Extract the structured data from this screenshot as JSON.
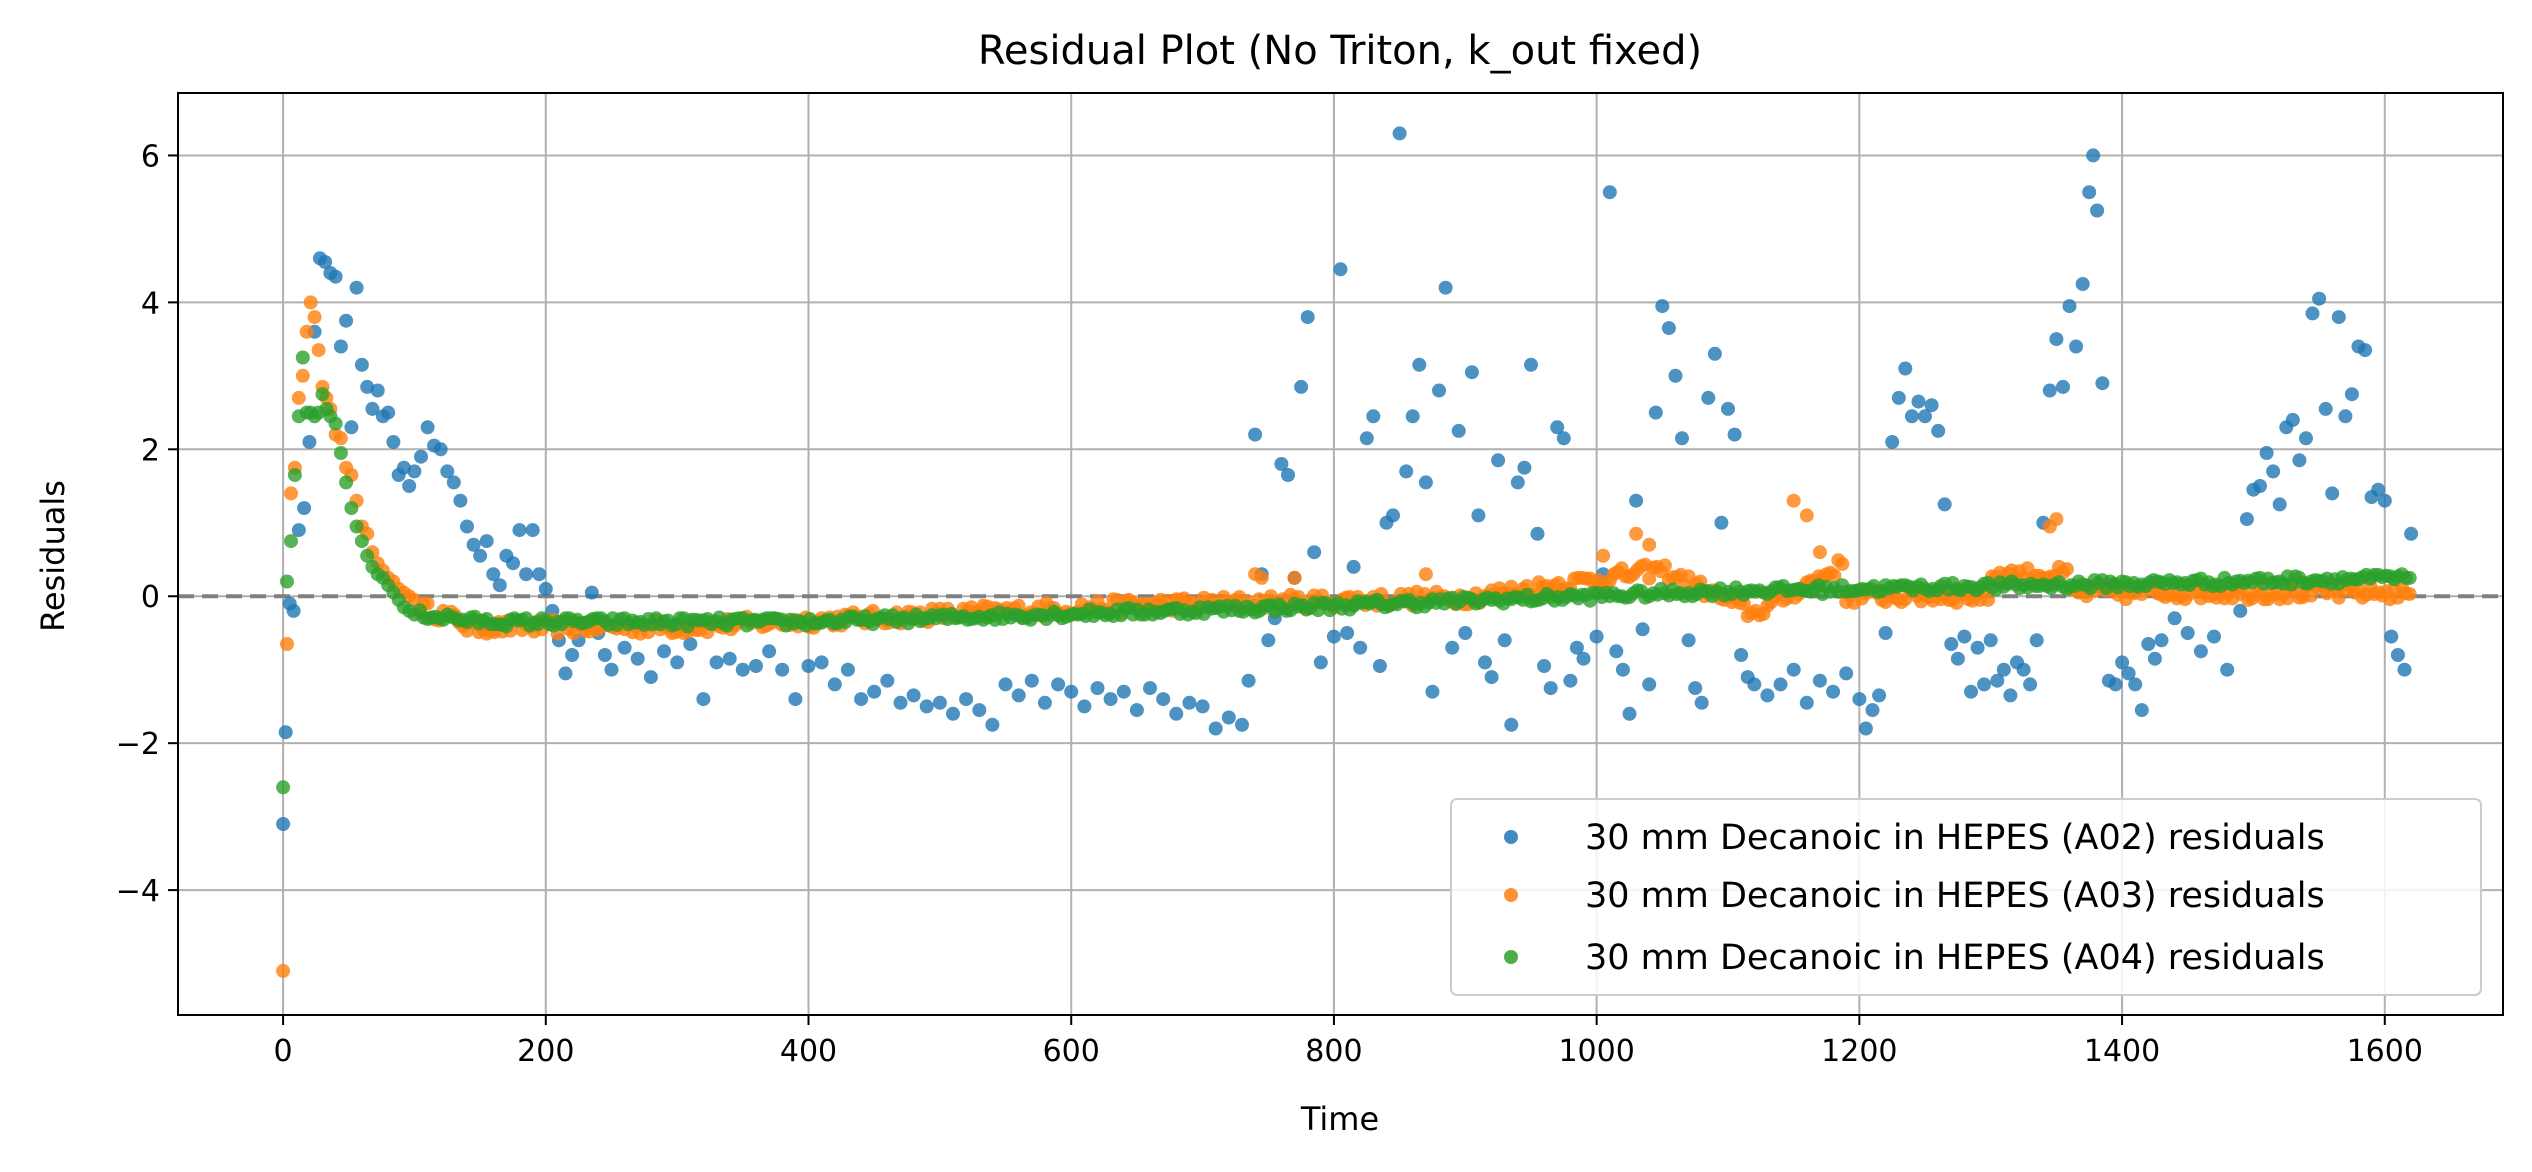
{
  "chart_data": {
    "type": "scatter",
    "title": "Residual Plot (No Triton, k_out fixed)",
    "xlabel": "Time",
    "ylabel": "Residuals",
    "xlim": [
      -80,
      1690
    ],
    "ylim": [
      -5.7,
      6.85
    ],
    "xticks": [
      0,
      200,
      400,
      600,
      800,
      1000,
      1200,
      1400,
      1600
    ],
    "xtick_labels": [
      "0",
      "200",
      "400",
      "600",
      "800",
      "1000",
      "1200",
      "1400",
      "1600"
    ],
    "yticks": [
      -4,
      -2,
      0,
      2,
      4,
      6
    ],
    "ytick_labels": [
      "−4",
      "−2",
      "0",
      "2",
      "4",
      "6"
    ],
    "grid": true,
    "legend_position": "lower-right",
    "reference_line": {
      "y": 0,
      "style": "dashed",
      "color": "#808080"
    },
    "series": [
      {
        "name": "30 mm Decanoic in HEPES (A02) residuals",
        "color": "#1f77b4",
        "points": [
          [
            0,
            -3.1
          ],
          [
            2,
            -1.85
          ],
          [
            5,
            -0.1
          ],
          [
            8,
            -0.2
          ],
          [
            12,
            0.9
          ],
          [
            16,
            1.2
          ],
          [
            20,
            2.1
          ],
          [
            24,
            3.6
          ],
          [
            28,
            4.6
          ],
          [
            32,
            4.55
          ],
          [
            36,
            4.4
          ],
          [
            40,
            4.35
          ],
          [
            44,
            3.4
          ],
          [
            48,
            3.75
          ],
          [
            52,
            2.3
          ],
          [
            56,
            4.2
          ],
          [
            60,
            3.15
          ],
          [
            64,
            2.85
          ],
          [
            68,
            2.55
          ],
          [
            72,
            2.8
          ],
          [
            76,
            2.45
          ],
          [
            80,
            2.5
          ],
          [
            84,
            2.1
          ],
          [
            88,
            1.65
          ],
          [
            92,
            1.75
          ],
          [
            96,
            1.5
          ],
          [
            100,
            1.7
          ],
          [
            105,
            1.9
          ],
          [
            110,
            2.3
          ],
          [
            115,
            2.05
          ],
          [
            120,
            2.0
          ],
          [
            125,
            1.7
          ],
          [
            130,
            1.55
          ],
          [
            135,
            1.3
          ],
          [
            140,
            0.95
          ],
          [
            145,
            0.7
          ],
          [
            150,
            0.55
          ],
          [
            155,
            0.75
          ],
          [
            160,
            0.3
          ],
          [
            165,
            0.15
          ],
          [
            170,
            0.55
          ],
          [
            175,
            0.45
          ],
          [
            180,
            0.9
          ],
          [
            185,
            0.3
          ],
          [
            190,
            0.9
          ],
          [
            195,
            0.3
          ],
          [
            200,
            0.1
          ],
          [
            205,
            -0.2
          ],
          [
            210,
            -0.6
          ],
          [
            215,
            -1.05
          ],
          [
            220,
            -0.8
          ],
          [
            225,
            -0.6
          ],
          [
            230,
            -0.4
          ],
          [
            235,
            0.05
          ],
          [
            240,
            -0.5
          ],
          [
            245,
            -0.8
          ],
          [
            250,
            -1.0
          ],
          [
            260,
            -0.7
          ],
          [
            270,
            -0.85
          ],
          [
            280,
            -1.1
          ],
          [
            290,
            -0.75
          ],
          [
            300,
            -0.9
          ],
          [
            310,
            -0.65
          ],
          [
            320,
            -1.4
          ],
          [
            330,
            -0.9
          ],
          [
            340,
            -0.85
          ],
          [
            350,
            -1.0
          ],
          [
            360,
            -0.95
          ],
          [
            370,
            -0.75
          ],
          [
            380,
            -1.0
          ],
          [
            390,
            -1.4
          ],
          [
            400,
            -0.95
          ],
          [
            410,
            -0.9
          ],
          [
            420,
            -1.2
          ],
          [
            430,
            -1.0
          ],
          [
            440,
            -1.4
          ],
          [
            450,
            -1.3
          ],
          [
            460,
            -1.15
          ],
          [
            470,
            -1.45
          ],
          [
            480,
            -1.35
          ],
          [
            490,
            -1.5
          ],
          [
            500,
            -1.45
          ],
          [
            510,
            -1.6
          ],
          [
            520,
            -1.4
          ],
          [
            530,
            -1.55
          ],
          [
            540,
            -1.75
          ],
          [
            550,
            -1.2
          ],
          [
            560,
            -1.35
          ],
          [
            570,
            -1.15
          ],
          [
            580,
            -1.45
          ],
          [
            590,
            -1.2
          ],
          [
            600,
            -1.3
          ],
          [
            610,
            -1.5
          ],
          [
            620,
            -1.25
          ],
          [
            630,
            -1.4
          ],
          [
            640,
            -1.3
          ],
          [
            650,
            -1.55
          ],
          [
            660,
            -1.25
          ],
          [
            670,
            -1.4
          ],
          [
            680,
            -1.6
          ],
          [
            690,
            -1.45
          ],
          [
            700,
            -1.5
          ],
          [
            710,
            -1.8
          ],
          [
            720,
            -1.65
          ],
          [
            730,
            -1.75
          ],
          [
            735,
            -1.15
          ],
          [
            740,
            2.2
          ],
          [
            745,
            0.3
          ],
          [
            750,
            -0.6
          ],
          [
            755,
            -0.3
          ],
          [
            760,
            1.8
          ],
          [
            765,
            1.65
          ],
          [
            770,
            0.25
          ],
          [
            775,
            2.85
          ],
          [
            780,
            3.8
          ],
          [
            785,
            0.6
          ],
          [
            790,
            -0.9
          ],
          [
            800,
            -0.55
          ],
          [
            805,
            4.45
          ],
          [
            810,
            -0.5
          ],
          [
            815,
            0.4
          ],
          [
            820,
            -0.7
          ],
          [
            825,
            2.15
          ],
          [
            830,
            2.45
          ],
          [
            835,
            -0.95
          ],
          [
            840,
            1.0
          ],
          [
            845,
            1.1
          ],
          [
            850,
            6.3
          ],
          [
            855,
            1.7
          ],
          [
            860,
            2.45
          ],
          [
            865,
            3.15
          ],
          [
            870,
            1.55
          ],
          [
            875,
            -1.3
          ],
          [
            880,
            2.8
          ],
          [
            885,
            4.2
          ],
          [
            890,
            -0.7
          ],
          [
            895,
            2.25
          ],
          [
            900,
            -0.5
          ],
          [
            905,
            3.05
          ],
          [
            910,
            1.1
          ],
          [
            915,
            -0.9
          ],
          [
            920,
            -1.1
          ],
          [
            925,
            1.85
          ],
          [
            930,
            -0.6
          ],
          [
            935,
            -1.75
          ],
          [
            940,
            1.55
          ],
          [
            945,
            1.75
          ],
          [
            950,
            3.15
          ],
          [
            955,
            0.85
          ],
          [
            960,
            -0.95
          ],
          [
            965,
            -1.25
          ],
          [
            970,
            2.3
          ],
          [
            975,
            2.15
          ],
          [
            980,
            -1.15
          ],
          [
            985,
            -0.7
          ],
          [
            990,
            -0.85
          ],
          [
            1000,
            -0.55
          ],
          [
            1005,
            0.3
          ],
          [
            1010,
            5.5
          ],
          [
            1015,
            -0.75
          ],
          [
            1020,
            -1.0
          ],
          [
            1025,
            -1.6
          ],
          [
            1030,
            1.3
          ],
          [
            1035,
            -0.45
          ],
          [
            1040,
            -1.2
          ],
          [
            1045,
            2.5
          ],
          [
            1050,
            3.95
          ],
          [
            1055,
            3.65
          ],
          [
            1060,
            3.0
          ],
          [
            1065,
            2.15
          ],
          [
            1070,
            -0.6
          ],
          [
            1075,
            -1.25
          ],
          [
            1080,
            -1.45
          ],
          [
            1085,
            2.7
          ],
          [
            1090,
            3.3
          ],
          [
            1095,
            1.0
          ],
          [
            1100,
            2.55
          ],
          [
            1105,
            2.2
          ],
          [
            1110,
            -0.8
          ],
          [
            1115,
            -1.1
          ],
          [
            1120,
            -1.2
          ],
          [
            1130,
            -1.35
          ],
          [
            1140,
            -1.2
          ],
          [
            1150,
            -1.0
          ],
          [
            1160,
            -1.45
          ],
          [
            1170,
            -1.15
          ],
          [
            1180,
            -1.3
          ],
          [
            1190,
            -1.05
          ],
          [
            1200,
            -1.4
          ],
          [
            1205,
            -1.8
          ],
          [
            1210,
            -1.55
          ],
          [
            1215,
            -1.35
          ],
          [
            1220,
            -0.5
          ],
          [
            1225,
            2.1
          ],
          [
            1230,
            2.7
          ],
          [
            1235,
            3.1
          ],
          [
            1240,
            2.45
          ],
          [
            1245,
            2.65
          ],
          [
            1250,
            2.45
          ],
          [
            1255,
            2.6
          ],
          [
            1260,
            2.25
          ],
          [
            1265,
            1.25
          ],
          [
            1270,
            -0.65
          ],
          [
            1275,
            -0.85
          ],
          [
            1280,
            -0.55
          ],
          [
            1285,
            -1.3
          ],
          [
            1290,
            -0.7
          ],
          [
            1295,
            -1.2
          ],
          [
            1300,
            -0.6
          ],
          [
            1305,
            -1.15
          ],
          [
            1310,
            -1.0
          ],
          [
            1315,
            -1.35
          ],
          [
            1320,
            -0.9
          ],
          [
            1325,
            -1.0
          ],
          [
            1330,
            -1.2
          ],
          [
            1335,
            -0.6
          ],
          [
            1340,
            1.0
          ],
          [
            1345,
            2.8
          ],
          [
            1350,
            3.5
          ],
          [
            1355,
            2.85
          ],
          [
            1360,
            3.95
          ],
          [
            1365,
            3.4
          ],
          [
            1370,
            4.25
          ],
          [
            1375,
            5.5
          ],
          [
            1378,
            6.0
          ],
          [
            1381,
            5.25
          ],
          [
            1385,
            2.9
          ],
          [
            1390,
            -1.15
          ],
          [
            1395,
            -1.2
          ],
          [
            1400,
            -0.9
          ],
          [
            1405,
            -1.05
          ],
          [
            1410,
            -1.2
          ],
          [
            1415,
            -1.55
          ],
          [
            1420,
            -0.65
          ],
          [
            1425,
            -0.85
          ],
          [
            1430,
            -0.6
          ],
          [
            1440,
            -0.3
          ],
          [
            1450,
            -0.5
          ],
          [
            1460,
            -0.75
          ],
          [
            1470,
            -0.55
          ],
          [
            1480,
            -1.0
          ],
          [
            1490,
            -0.2
          ],
          [
            1495,
            1.05
          ],
          [
            1500,
            1.45
          ],
          [
            1505,
            1.5
          ],
          [
            1510,
            1.95
          ],
          [
            1515,
            1.7
          ],
          [
            1520,
            1.25
          ],
          [
            1525,
            2.3
          ],
          [
            1530,
            2.4
          ],
          [
            1535,
            1.85
          ],
          [
            1540,
            2.15
          ],
          [
            1545,
            3.85
          ],
          [
            1550,
            4.05
          ],
          [
            1555,
            2.55
          ],
          [
            1560,
            1.4
          ],
          [
            1565,
            3.8
          ],
          [
            1570,
            2.45
          ],
          [
            1575,
            2.75
          ],
          [
            1580,
            3.4
          ],
          [
            1585,
            3.35
          ],
          [
            1590,
            1.35
          ],
          [
            1595,
            1.45
          ],
          [
            1600,
            1.3
          ],
          [
            1605,
            -0.55
          ],
          [
            1610,
            -0.8
          ],
          [
            1615,
            -1.0
          ],
          [
            1620,
            0.85
          ]
        ]
      },
      {
        "name": "30 mm Decanoic in HEPES (A03) residuals",
        "color": "#ff7f0e",
        "generator": "A03"
      },
      {
        "name": "30 mm Decanoic in HEPES (A04) residuals",
        "color": "#2ca02c",
        "generator": "A04"
      }
    ]
  }
}
